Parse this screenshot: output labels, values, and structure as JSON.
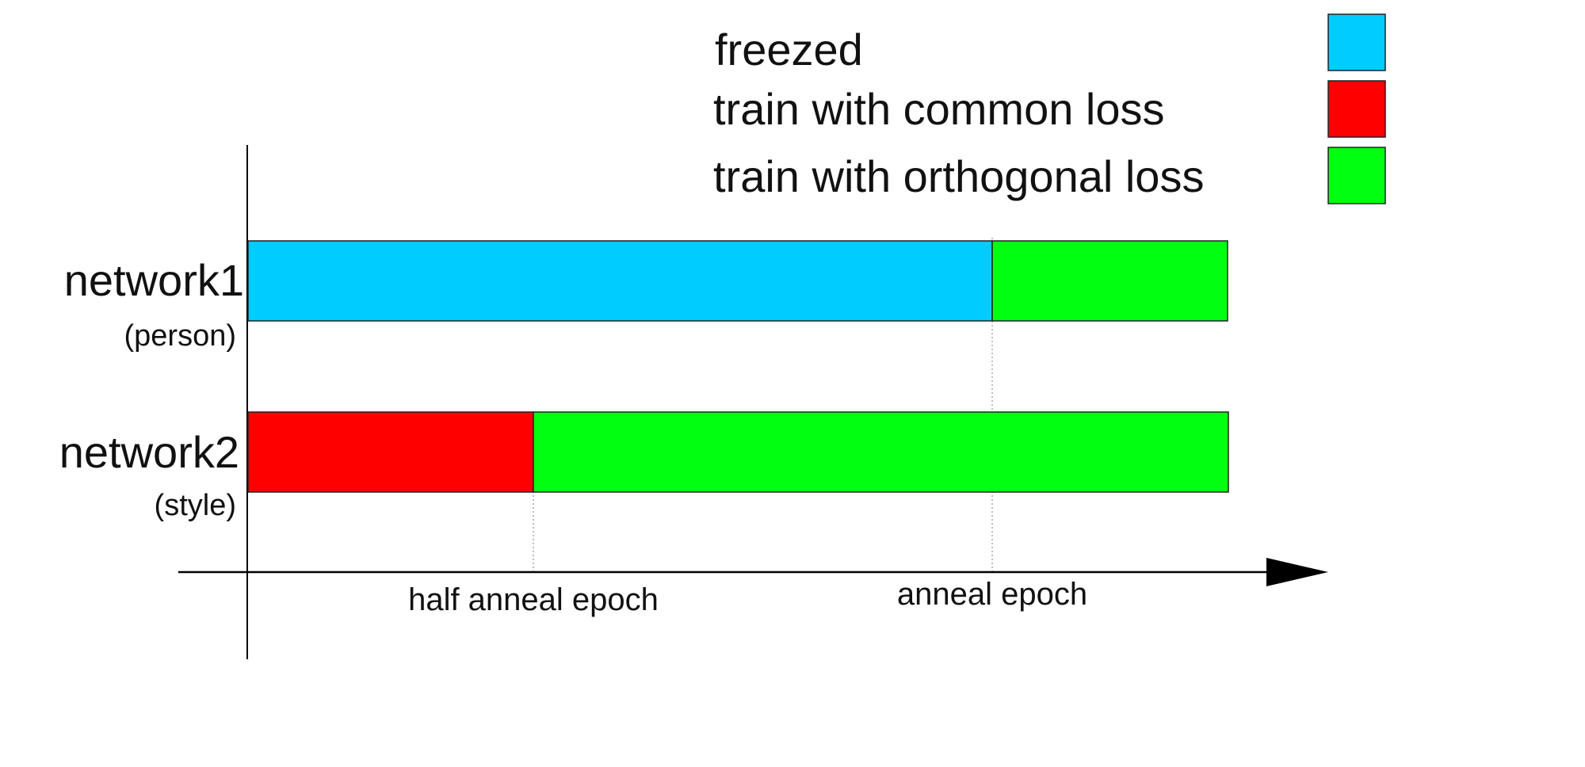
{
  "legend": {
    "items": [
      {
        "label": "freezed",
        "color": "#00CCFF"
      },
      {
        "label": "train with common loss",
        "color": "#FF0000"
      },
      {
        "label": "train with orthogonal loss",
        "color": "#00FF11"
      }
    ]
  },
  "networks": [
    {
      "name": "network1",
      "subtitle": "(person)",
      "segments": [
        {
          "phase": "freezed",
          "from": 0,
          "to": 1.0
        },
        {
          "phase": "train with orthogonal loss",
          "from": 1.0,
          "to": 1.32
        }
      ]
    },
    {
      "name": "network2",
      "subtitle": "(style)",
      "segments": [
        {
          "phase": "train with common loss",
          "from": 0,
          "to": 0.5
        },
        {
          "phase": "train with orthogonal loss",
          "from": 0.5,
          "to": 1.32
        }
      ]
    }
  ],
  "axis": {
    "ticks": [
      {
        "label": "half anneal epoch",
        "value": 0.5
      },
      {
        "label": "anneal epoch",
        "value": 1.0
      }
    ]
  }
}
